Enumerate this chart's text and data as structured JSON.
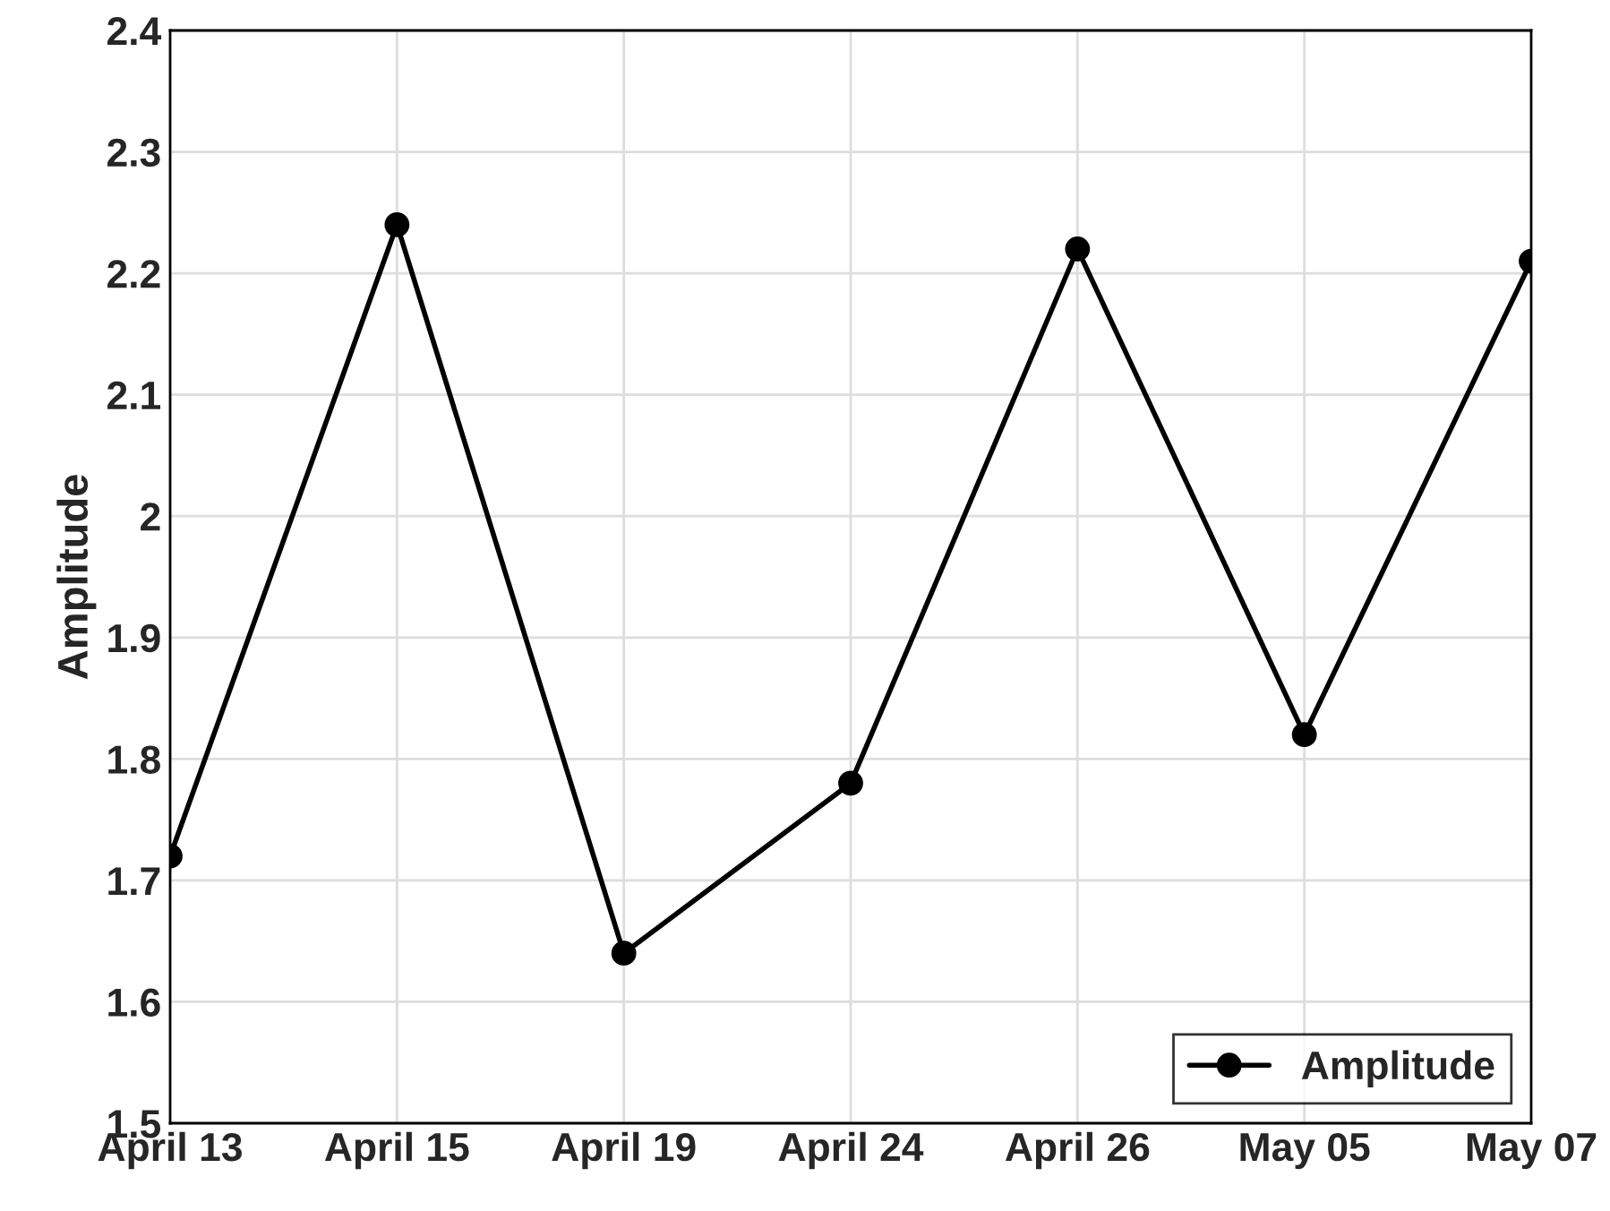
{
  "chart_data": {
    "type": "line",
    "ylabel": "Amplitude",
    "categories": [
      "April 13",
      "April 15",
      "April 19",
      "April 24",
      "April 26",
      "May 05",
      "May 07"
    ],
    "series": [
      {
        "name": "Amplitude",
        "color": "#000000",
        "values": [
          1.72,
          2.24,
          1.64,
          1.78,
          2.22,
          1.82,
          2.21
        ]
      }
    ],
    "ylim": [
      1.5,
      2.4
    ],
    "yticks": [
      1.5,
      1.6,
      1.7,
      1.8,
      1.9,
      2,
      2.1,
      2.2,
      2.3,
      2.4
    ],
    "grid": true,
    "legend": "bottom right",
    "marker": "circle",
    "line_style": "solid"
  }
}
